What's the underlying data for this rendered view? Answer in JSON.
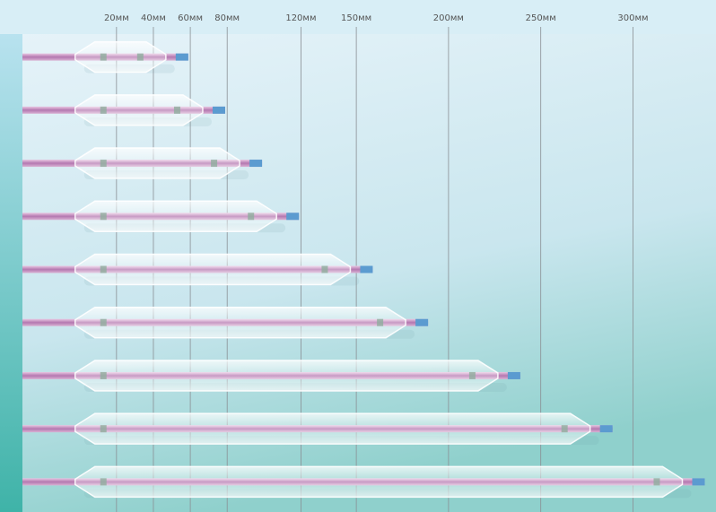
{
  "chart_data": {
    "type": "bar",
    "horizontal": true,
    "categories": [
      null,
      null,
      null,
      null,
      null,
      null,
      null,
      null,
      null
    ],
    "values": [
      20,
      40,
      60,
      80,
      120,
      150,
      200,
      250,
      300
    ],
    "xlim": [
      -31,
      345
    ],
    "xticks": [
      {
        "value": 20,
        "label": "20мм"
      },
      {
        "value": 40,
        "label": "40мм"
      },
      {
        "value": 60,
        "label": "60мм"
      },
      {
        "value": 80,
        "label": "80мм"
      },
      {
        "value": 120,
        "label": "120мм"
      },
      {
        "value": 150,
        "label": "150мм"
      },
      {
        "value": 200,
        "label": "200мм"
      },
      {
        "value": 250,
        "label": "250мм"
      },
      {
        "value": 300,
        "label": "300мм"
      }
    ],
    "grid": true
  }
}
